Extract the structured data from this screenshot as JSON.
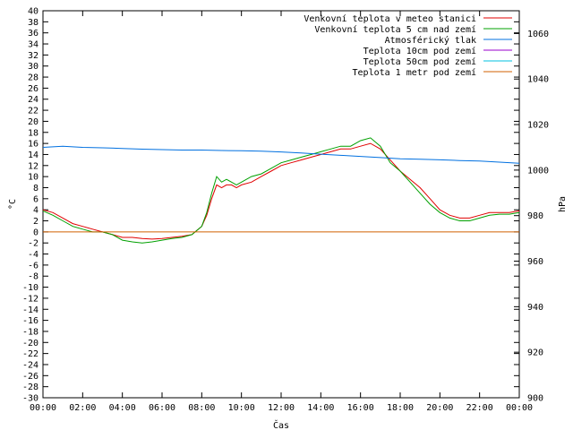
{
  "chart_data": {
    "type": "line",
    "xlabel": "Čas",
    "ylabel": "°C",
    "y2label": "hPa",
    "xlim": [
      0,
      24
    ],
    "ylim": [
      -30,
      40
    ],
    "y2lim": [
      900,
      1070
    ],
    "x_ticks": [
      "00:00",
      "02:00",
      "04:00",
      "06:00",
      "08:00",
      "10:00",
      "12:00",
      "14:00",
      "16:00",
      "18:00",
      "20:00",
      "22:00",
      "00:00"
    ],
    "y_ticks": [
      40,
      38,
      36,
      34,
      32,
      30,
      28,
      26,
      24,
      22,
      20,
      18,
      16,
      14,
      12,
      10,
      8,
      6,
      4,
      2,
      0,
      -2,
      -4,
      -6,
      -8,
      -10,
      -12,
      -14,
      -16,
      -18,
      -20,
      -22,
      -24,
      -26,
      -28,
      -30
    ],
    "y2_ticks": [
      1060,
      1040,
      1020,
      1000,
      980,
      960,
      940,
      920,
      900
    ],
    "grid": false,
    "legend_position": "top-right",
    "series": [
      {
        "name": "Venkovní teplota v meteo stanici",
        "color": "#e00000",
        "axis": "y",
        "x": [
          0,
          0.5,
          1,
          1.5,
          2,
          2.5,
          3,
          3.5,
          4,
          4.5,
          5,
          5.5,
          6,
          6.5,
          7,
          7.5,
          8,
          8.25,
          8.5,
          8.75,
          9,
          9.25,
          9.5,
          9.75,
          10,
          10.5,
          11,
          11.5,
          12,
          12.5,
          13,
          13.5,
          14,
          14.5,
          15,
          15.5,
          16,
          16.5,
          17,
          17.5,
          18,
          18.5,
          19,
          19.5,
          20,
          20.5,
          21,
          21.5,
          22,
          22.5,
          23,
          23.5,
          24
        ],
        "y": [
          4,
          3.5,
          2.5,
          1.5,
          1,
          0.5,
          0,
          -0.5,
          -1,
          -1,
          -1.2,
          -1.3,
          -1.2,
          -1,
          -0.8,
          -0.5,
          1,
          3,
          6,
          8.5,
          8,
          8.5,
          8.5,
          8,
          8.5,
          9,
          10,
          11,
          12,
          12.5,
          13,
          13.5,
          14,
          14.5,
          15,
          15,
          15.5,
          16,
          15,
          13,
          11,
          9.5,
          8,
          6,
          4,
          3,
          2.5,
          2.5,
          3,
          3.5,
          3.5,
          3.5,
          3.8
        ]
      },
      {
        "name": "Venkovní teplota 5 cm nad zemí",
        "color": "#00a000",
        "axis": "y",
        "x": [
          0,
          0.5,
          1,
          1.5,
          2,
          2.5,
          3,
          3.5,
          4,
          4.5,
          5,
          5.5,
          6,
          6.5,
          7,
          7.5,
          8,
          8.25,
          8.5,
          8.75,
          9,
          9.25,
          9.5,
          9.75,
          10,
          10.5,
          11,
          11.5,
          12,
          12.5,
          13,
          13.5,
          14,
          14.5,
          15,
          15.5,
          16,
          16.5,
          17,
          17.5,
          18,
          18.5,
          19,
          19.5,
          20,
          20.5,
          21,
          21.5,
          22,
          22.5,
          23,
          23.5,
          24
        ],
        "y": [
          3.8,
          3,
          2,
          1,
          0.5,
          0,
          0,
          -0.5,
          -1.5,
          -1.8,
          -2,
          -1.8,
          -1.5,
          -1.2,
          -1,
          -0.5,
          1,
          3.5,
          7,
          10,
          9,
          9.5,
          9,
          8.5,
          9,
          10,
          10.5,
          11.5,
          12.5,
          13,
          13.5,
          14,
          14.5,
          15,
          15.5,
          15.5,
          16.5,
          17,
          15.5,
          12.5,
          11,
          9,
          7,
          5,
          3.5,
          2.5,
          2,
          2,
          2.5,
          3,
          3.2,
          3.2,
          3.5
        ]
      },
      {
        "name": "Atmosférický tlak",
        "color": "#0070e0",
        "axis": "y2",
        "x": [
          0,
          1,
          2,
          3,
          4,
          5,
          6,
          7,
          8,
          9,
          10,
          11,
          12,
          13,
          14,
          15,
          16,
          17,
          18,
          19,
          20,
          21,
          22,
          23,
          24
        ],
        "y": [
          1010,
          1010.5,
          1010,
          1009.8,
          1009.5,
          1009.2,
          1009,
          1008.8,
          1008.8,
          1008.6,
          1008.5,
          1008.3,
          1008,
          1007.5,
          1007,
          1006.5,
          1006,
          1005.5,
          1005,
          1004.8,
          1004.5,
          1004.2,
          1004,
          1003.5,
          1003
        ]
      },
      {
        "name": "Teplota 10cm pod zemí",
        "color": "#9900cc",
        "axis": "y",
        "x": [],
        "y": []
      },
      {
        "name": "Teplota 50cm pod zemí",
        "color": "#00c0e0",
        "axis": "y",
        "x": [],
        "y": []
      },
      {
        "name": "Teplota 1 metr pod zemí",
        "color": "#d06000",
        "axis": "y",
        "x": [
          0,
          24
        ],
        "y": [
          0,
          0
        ]
      }
    ]
  }
}
